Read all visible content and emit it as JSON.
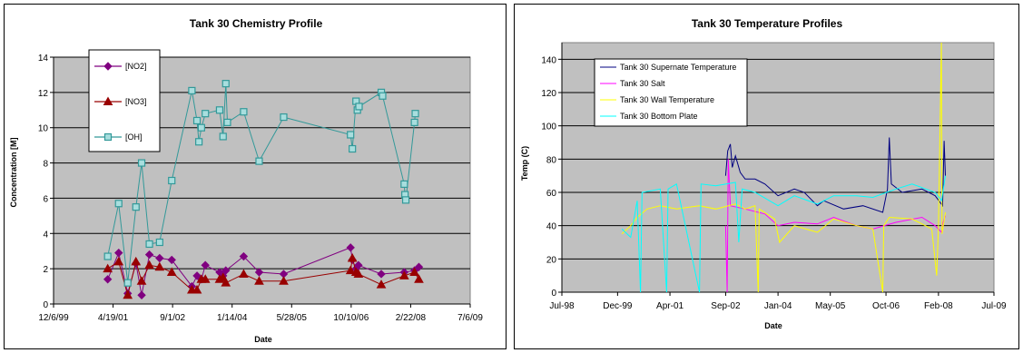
{
  "chart_data": [
    {
      "type": "scatter",
      "title": "Tank 30 Chemistry Profile",
      "xlabel": "Date",
      "ylabel": "Concentration [M]",
      "xlim": [
        "1999-12-06",
        "2009-07-06"
      ],
      "ylim": [
        0,
        14
      ],
      "x_ticks": [
        "12/6/99",
        "4/19/01",
        "9/1/02",
        "1/14/04",
        "5/28/05",
        "10/10/06",
        "2/22/08",
        "7/6/09"
      ],
      "y_ticks": [
        0,
        2,
        4,
        6,
        8,
        10,
        12,
        14
      ],
      "grid": true,
      "legend_position": "top-left",
      "series": [
        {
          "name": "[NO2]",
          "color": "#800080",
          "marker": "diamond",
          "points": [
            [
              "2001-03-05",
              1.4
            ],
            [
              "2001-06-05",
              2.9
            ],
            [
              "2001-08-20",
              0.6
            ],
            [
              "2001-10-28",
              2.3
            ],
            [
              "2001-12-15",
              0.5
            ],
            [
              "2002-02-18",
              2.8
            ],
            [
              "2002-05-15",
              2.6
            ],
            [
              "2002-08-25",
              2.5
            ],
            [
              "2003-02-10",
              1.0
            ],
            [
              "2003-03-25",
              1.6
            ],
            [
              "2003-05-01",
              1.4
            ],
            [
              "2003-06-03",
              2.2
            ],
            [
              "2003-10-01",
              1.8
            ],
            [
              "2003-10-30",
              1.6
            ],
            [
              "2003-11-22",
              1.9
            ],
            [
              "2004-04-20",
              2.7
            ],
            [
              "2004-08-28",
              1.8
            ],
            [
              "2005-03-22",
              1.7
            ],
            [
              "2006-10-05",
              3.2
            ],
            [
              "2006-10-20",
              2.5
            ],
            [
              "2006-11-20",
              2.0
            ],
            [
              "2006-12-10",
              2.2
            ],
            [
              "2007-06-20",
              1.7
            ],
            [
              "2007-12-30",
              1.8
            ],
            [
              "2008-03-25",
              1.9
            ],
            [
              "2008-05-01",
              2.1
            ]
          ]
        },
        {
          "name": "[NO3]",
          "color": "#990000",
          "marker": "triangle",
          "points": [
            [
              "2001-03-05",
              2.0
            ],
            [
              "2001-06-05",
              2.4
            ],
            [
              "2001-08-20",
              0.5
            ],
            [
              "2001-10-28",
              2.4
            ],
            [
              "2001-12-15",
              1.3
            ],
            [
              "2002-02-18",
              2.2
            ],
            [
              "2002-05-15",
              2.1
            ],
            [
              "2002-08-25",
              1.8
            ],
            [
              "2003-02-10",
              0.8
            ],
            [
              "2003-03-25",
              0.8
            ],
            [
              "2003-05-01",
              1.4
            ],
            [
              "2003-06-03",
              1.4
            ],
            [
              "2003-10-01",
              1.4
            ],
            [
              "2003-10-30",
              1.5
            ],
            [
              "2003-11-22",
              1.2
            ],
            [
              "2004-04-20",
              1.7
            ],
            [
              "2004-08-28",
              1.3
            ],
            [
              "2005-03-22",
              1.3
            ],
            [
              "2006-10-05",
              1.9
            ],
            [
              "2006-10-20",
              2.6
            ],
            [
              "2006-11-20",
              1.8
            ],
            [
              "2006-12-10",
              1.7
            ],
            [
              "2007-06-20",
              1.1
            ],
            [
              "2007-12-30",
              1.6
            ],
            [
              "2008-03-25",
              1.8
            ],
            [
              "2008-05-01",
              1.4
            ]
          ]
        },
        {
          "name": "[OH]",
          "color": "#339999",
          "marker": "square",
          "points": [
            [
              "2001-03-05",
              2.7
            ],
            [
              "2001-06-05",
              5.7
            ],
            [
              "2001-08-20",
              1.2
            ],
            [
              "2001-10-28",
              5.5
            ],
            [
              "2001-12-15",
              8.0
            ],
            [
              "2002-02-18",
              3.4
            ],
            [
              "2002-05-15",
              3.5
            ],
            [
              "2002-08-25",
              7.0
            ],
            [
              "2003-02-10",
              12.1
            ],
            [
              "2003-03-25",
              10.4
            ],
            [
              "2003-04-10",
              9.2
            ],
            [
              "2003-05-01",
              10.0
            ],
            [
              "2003-06-03",
              10.8
            ],
            [
              "2003-10-01",
              11.0
            ],
            [
              "2003-10-30",
              9.5
            ],
            [
              "2003-11-22",
              12.5
            ],
            [
              "2003-12-05",
              10.3
            ],
            [
              "2004-04-20",
              10.9
            ],
            [
              "2004-08-28",
              8.1
            ],
            [
              "2005-03-22",
              10.6
            ],
            [
              "2006-10-05",
              9.6
            ],
            [
              "2006-10-20",
              8.8
            ],
            [
              "2006-11-20",
              11.5
            ],
            [
              "2006-12-01",
              11.0
            ],
            [
              "2006-12-15",
              11.2
            ],
            [
              "2007-06-20",
              12.0
            ],
            [
              "2007-07-01",
              11.8
            ],
            [
              "2007-12-30",
              6.8
            ],
            [
              "2008-01-05",
              6.2
            ],
            [
              "2008-01-12",
              5.9
            ],
            [
              "2008-03-25",
              10.3
            ],
            [
              "2008-04-01",
              10.8
            ]
          ]
        }
      ]
    },
    {
      "type": "line",
      "title": "Tank 30 Temperature Profiles",
      "xlabel": "Date",
      "ylabel": "Temp (C)",
      "xlim": [
        "1998-07-01",
        "2009-07-01"
      ],
      "ylim": [
        0,
        150
      ],
      "x_ticks": [
        "Jul-98",
        "Dec-99",
        "Apr-01",
        "Sep-02",
        "Jan-04",
        "May-05",
        "Oct-06",
        "Feb-08",
        "Jul-09"
      ],
      "y_ticks": [
        0,
        20,
        40,
        60,
        80,
        100,
        120,
        140
      ],
      "grid": true,
      "legend_position": "top-left",
      "series": [
        {
          "name": "Tank 30 Supernate Temperature",
          "color": "#000080",
          "points": [
            [
              "2002-09-01",
              70
            ],
            [
              "2002-09-20",
              85
            ],
            [
              "2002-10-15",
              89
            ],
            [
              "2002-11-01",
              75
            ],
            [
              "2002-12-01",
              82
            ],
            [
              "2003-01-15",
              72
            ],
            [
              "2003-03-01",
              68
            ],
            [
              "2003-06-01",
              68
            ],
            [
              "2003-09-01",
              65
            ],
            [
              "2004-01-01",
              58
            ],
            [
              "2004-06-01",
              62
            ],
            [
              "2004-09-01",
              60
            ],
            [
              "2005-01-01",
              52
            ],
            [
              "2005-03-01",
              55
            ],
            [
              "2005-09-01",
              50
            ],
            [
              "2006-03-01",
              52
            ],
            [
              "2006-09-01",
              48
            ],
            [
              "2006-10-15",
              62
            ],
            [
              "2006-11-01",
              93
            ],
            [
              "2006-11-20",
              65
            ],
            [
              "2007-03-01",
              60
            ],
            [
              "2007-09-01",
              62
            ],
            [
              "2008-01-01",
              58
            ],
            [
              "2008-03-10",
              52
            ],
            [
              "2008-03-25",
              91
            ],
            [
              "2008-04-05",
              70
            ]
          ]
        },
        {
          "name": "Tank 30 Salt",
          "color": "#FF00FF",
          "points": [
            [
              "2002-09-01",
              40
            ],
            [
              "2002-09-15",
              0
            ],
            [
              "2002-09-25",
              80
            ],
            [
              "2002-10-15",
              52
            ],
            [
              "2003-03-01",
              50
            ],
            [
              "2003-09-01",
              47
            ],
            [
              "2004-01-01",
              40
            ],
            [
              "2004-06-01",
              42
            ],
            [
              "2005-01-01",
              41
            ],
            [
              "2005-06-01",
              45
            ],
            [
              "2006-01-01",
              40
            ],
            [
              "2006-06-01",
              38
            ],
            [
              "2007-01-01",
              42
            ],
            [
              "2007-09-01",
              45
            ],
            [
              "2008-01-01",
              40
            ],
            [
              "2008-03-01",
              36
            ],
            [
              "2008-03-15",
              42
            ],
            [
              "2008-04-05",
              46
            ]
          ]
        },
        {
          "name": "Tank 30 Wall Temperature",
          "color": "#FFFF00",
          "points": [
            [
              "2000-01-10",
              35
            ],
            [
              "2000-04-01",
              40
            ],
            [
              "2000-06-01",
              45
            ],
            [
              "2000-09-01",
              50
            ],
            [
              "2001-01-01",
              52
            ],
            [
              "2001-06-01",
              50
            ],
            [
              "2002-01-01",
              52
            ],
            [
              "2002-06-01",
              50
            ],
            [
              "2002-12-01",
              53
            ],
            [
              "2003-03-01",
              50
            ],
            [
              "2003-06-01",
              52
            ],
            [
              "2003-07-01",
              0
            ],
            [
              "2003-07-10",
              50
            ],
            [
              "2003-12-01",
              44
            ],
            [
              "2004-01-15",
              30
            ],
            [
              "2004-06-01",
              40
            ],
            [
              "2005-01-01",
              36
            ],
            [
              "2005-06-01",
              44
            ],
            [
              "2006-01-01",
              40
            ],
            [
              "2006-06-01",
              38
            ],
            [
              "2006-09-01",
              0
            ],
            [
              "2006-09-10",
              40
            ],
            [
              "2006-11-01",
              45
            ],
            [
              "2007-06-01",
              44
            ],
            [
              "2007-12-01",
              38
            ],
            [
              "2008-01-15",
              10
            ],
            [
              "2008-02-01",
              40
            ],
            [
              "2008-02-28",
              150
            ],
            [
              "2008-03-05",
              35
            ],
            [
              "2008-04-05",
              48
            ]
          ]
        },
        {
          "name": "Tank 30 Bottom Plate",
          "color": "#00FFFF",
          "points": [
            [
              "2000-01-10",
              38
            ],
            [
              "2000-04-01",
              33
            ],
            [
              "2000-06-01",
              55
            ],
            [
              "2000-07-01",
              0
            ],
            [
              "2000-07-15",
              60
            ],
            [
              "2001-01-01",
              62
            ],
            [
              "2001-03-01",
              0
            ],
            [
              "2001-03-15",
              62
            ],
            [
              "2001-06-01",
              65
            ],
            [
              "2002-01-01",
              0
            ],
            [
              "2002-01-15",
              65
            ],
            [
              "2002-06-01",
              64
            ],
            [
              "2002-12-01",
              66
            ],
            [
              "2003-01-01",
              30
            ],
            [
              "2003-02-01",
              62
            ],
            [
              "2003-06-01",
              60
            ],
            [
              "2004-01-01",
              52
            ],
            [
              "2004-06-01",
              58
            ],
            [
              "2005-01-01",
              53
            ],
            [
              "2005-06-01",
              58
            ],
            [
              "2006-01-01",
              58
            ],
            [
              "2006-06-01",
              57
            ],
            [
              "2007-01-01",
              62
            ],
            [
              "2007-06-01",
              65
            ],
            [
              "2008-01-01",
              60
            ],
            [
              "2008-03-01",
              55
            ],
            [
              "2008-04-05",
              70
            ]
          ]
        }
      ]
    }
  ]
}
